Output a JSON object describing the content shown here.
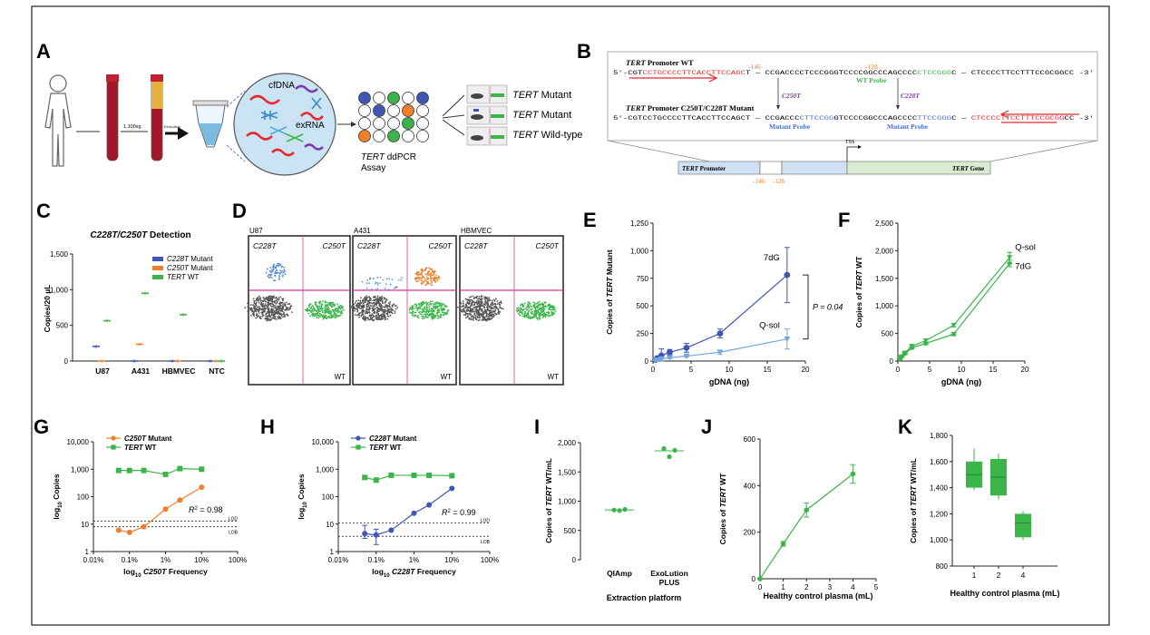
{
  "panels": {
    "A": {
      "letter": "A",
      "centrifuge": "1,100xg",
      "exolution": "ExoLution",
      "cfdna": "cfDNA",
      "exrna": "exRNA",
      "assay_name": "TERT",
      "assay_suffix": " ddPCR",
      "assay_line2": "Assay",
      "out_gene": "TERT",
      "out1": " Mutant",
      "out2": " Mutant",
      "out3": " Wild-type"
    },
    "B": {
      "letter": "B",
      "wt_title_gene": "TERT",
      "wt_title_rest": " Promoter WT",
      "wt_seq_prefix": "5'-CGT",
      "wt_seq_red": "CCTGCCCCTTCACCTTCCAGC",
      "wt_seq_mid": "T — CCGACCCCTCCCGGGTCCCCGGCCCAGCCCC",
      "wt_seq_probe": "CTCCGGG",
      "wt_seq_suffix": "C — CTCCCCTTCCTTTCCGCGGCC -3'",
      "pos146": "-146",
      "pos128": "-128",
      "wt_probe": "WT Probe",
      "c250": "C250T",
      "c228": "C228T",
      "mut_title_gene": "TERT",
      "mut_title_rest": " Promoter C250T/C228T Mutant",
      "mut_seq_prefix": "5'-CGTCCTGCCCCTTCACCTTCCAGCT — CCGACCC",
      "mut_seq_p1": "CTTCCGG",
      "mut_seq_mid": "GTCCCCGGCCCAGCCCC",
      "mut_seq_p2": "TTCCGGG",
      "mut_seq_c": "C — ",
      "mut_seq_red": "CTCCCCTTCCTTTCCGCGG",
      "mut_seq_suffix": "CC -3'",
      "mut_probe1": "Mutant Probe",
      "mut_probe2": "Mutant Probe",
      "tss": "TSS",
      "promoter_gene": "TERT",
      "promoter_rest": " Promoter",
      "gene_gene": "TERT",
      "gene_rest": " Gene",
      "bar146": "-146",
      "bar128": "-128"
    },
    "C": {
      "letter": "C"
    },
    "D": {
      "letter": "D",
      "plots": [
        {
          "name": "U87",
          "q1": "C228T",
          "q2": "C250T",
          "wt": "WT"
        },
        {
          "name": "A431",
          "q1": "C228T",
          "q2": "C250T",
          "wt": "WT"
        },
        {
          "name": "HBMVEC",
          "q1": "C228T",
          "q2": "C250T",
          "wt": "WT"
        }
      ]
    },
    "E": {
      "letter": "E"
    },
    "F": {
      "letter": "F"
    },
    "G": {
      "letter": "G"
    },
    "H": {
      "letter": "H"
    },
    "I": {
      "letter": "I"
    },
    "J": {
      "letter": "J"
    },
    "K": {
      "letter": "K"
    }
  },
  "colors": {
    "blue": "#3f56b5",
    "orange": "#f07f2a",
    "green": "#3bb54a",
    "lightblue": "#74a7dc",
    "magenta": "#d8389a",
    "red": "#e8282a",
    "purple": "#7a3db0",
    "probe_blue": "#4b6fd6"
  },
  "chart_data": [
    {
      "id": "C",
      "type": "scatter",
      "title": "C228T/C250T Detection",
      "xlabel": "",
      "ylabel": "Copies/20 µL",
      "categories": [
        "U87",
        "A431",
        "HBMVEC",
        "NTC"
      ],
      "ylim": [
        0,
        1500
      ],
      "yticks": [
        0,
        500,
        1000,
        1500
      ],
      "ytick_labels": [
        "0",
        "500",
        "1,000",
        "1,500"
      ],
      "legend": "top-right",
      "series": [
        {
          "name": "C228T Mutant",
          "values": [
            205,
            0,
            0,
            0
          ]
        },
        {
          "name": "C250T Mutant",
          "values": [
            0,
            235,
            0,
            0
          ]
        },
        {
          "name": "TERT WT",
          "values": [
            565,
            950,
            650,
            0
          ]
        }
      ]
    },
    {
      "id": "E",
      "type": "line",
      "xlabel": "gDNA (ng)",
      "ylabel": "Copies of TERT Mutant",
      "xlim": [
        0,
        20
      ],
      "ylim": [
        0,
        1250
      ],
      "xticks": [
        0,
        5,
        10,
        15,
        20
      ],
      "yticks": [
        0,
        250,
        500,
        750,
        1000,
        1250
      ],
      "ytick_labels": [
        "0",
        "250",
        "500",
        "750",
        "1,000",
        "1,250"
      ],
      "annotation": "P = 0.04",
      "series": [
        {
          "name": "7dG",
          "x": [
            0.28,
            0.55,
            1.1,
            2.2,
            4.4,
            8.8,
            17.6
          ],
          "values": [
            10,
            25,
            50,
            80,
            120,
            250,
            780
          ],
          "err": [
            5,
            8,
            60,
            25,
            40,
            40,
            250
          ]
        },
        {
          "name": "Q-sol",
          "x": [
            0.28,
            0.55,
            1.1,
            2.2,
            4.4,
            8.8,
            17.6
          ],
          "values": [
            5,
            10,
            20,
            30,
            45,
            80,
            200
          ],
          "err": [
            3,
            4,
            5,
            6,
            10,
            20,
            90
          ]
        }
      ]
    },
    {
      "id": "F",
      "type": "line",
      "xlabel": "gDNA (ng)",
      "ylabel": "Copies of TERT WT",
      "xlim": [
        0,
        20
      ],
      "ylim": [
        0,
        2500
      ],
      "xticks": [
        0,
        5,
        10,
        15,
        20
      ],
      "yticks": [
        0,
        500,
        1000,
        1500,
        2000,
        2500
      ],
      "ytick_labels": [
        "0",
        "500",
        "1,000",
        "1,500",
        "2,000",
        "2,500"
      ],
      "series": [
        {
          "name": "Q-sol",
          "x": [
            0.28,
            0.55,
            1.1,
            2.2,
            4.4,
            8.8,
            17.6
          ],
          "values": [
            40,
            80,
            150,
            270,
            370,
            650,
            1880
          ],
          "err": [
            10,
            10,
            15,
            20,
            25,
            30,
            90
          ]
        },
        {
          "name": "7dG",
          "x": [
            0.28,
            0.55,
            1.1,
            2.2,
            4.4,
            8.8,
            17.6
          ],
          "values": [
            30,
            70,
            130,
            240,
            320,
            490,
            1770
          ],
          "err": [
            10,
            10,
            15,
            20,
            25,
            30,
            60
          ]
        }
      ]
    },
    {
      "id": "G",
      "type": "line",
      "xlabel": "log10 C250T Frequency",
      "ylabel": "log10 Copies",
      "xscale": "log",
      "yscale": "log",
      "xlim": [
        0.01,
        100
      ],
      "ylim": [
        1,
        10000
      ],
      "xtick_labels": [
        "0.01%",
        "0.1%",
        "1%",
        "10%",
        "100%"
      ],
      "ytick_labels": [
        "1",
        "10",
        "100",
        "1,000",
        "10,000"
      ],
      "annotation": "R² = 0.98",
      "lines": [
        {
          "name": "LOD",
          "y": 13
        },
        {
          "name": "LOB",
          "y": 8
        }
      ],
      "series": [
        {
          "name": "C250T Mutant",
          "x": [
            0.05,
            0.1,
            0.25,
            1,
            2.5,
            10
          ],
          "values": [
            6,
            5,
            8,
            35,
            75,
            220
          ]
        },
        {
          "name": "TERT WT",
          "x": [
            0.05,
            0.1,
            0.25,
            1,
            2.5,
            10
          ],
          "values": [
            900,
            900,
            900,
            650,
            1050,
            1000
          ]
        }
      ]
    },
    {
      "id": "H",
      "type": "line",
      "xlabel": "log10 C228T Frequency",
      "ylabel": "log10 Copies",
      "xscale": "log",
      "yscale": "log",
      "xlim": [
        0.01,
        100
      ],
      "ylim": [
        1,
        10000
      ],
      "xtick_labels": [
        "0.01%",
        "0.1%",
        "1%",
        "10%",
        "100%"
      ],
      "ytick_labels": [
        "1",
        "10",
        "100",
        "1,000",
        "10,000"
      ],
      "annotation": "R² = 0.99",
      "lines": [
        {
          "name": "LOD",
          "y": 11
        },
        {
          "name": "LOB",
          "y": 3.6
        }
      ],
      "series": [
        {
          "name": "C228T Mutant",
          "x": [
            0.05,
            0.1,
            0.25,
            1,
            2.5,
            10
          ],
          "values": [
            4.5,
            4,
            6,
            25,
            50,
            200
          ]
        },
        {
          "name": "TERT WT",
          "x": [
            0.05,
            0.1,
            0.25,
            1,
            2.5,
            10
          ],
          "values": [
            500,
            400,
            600,
            600,
            600,
            580
          ]
        }
      ]
    },
    {
      "id": "I",
      "type": "scatter",
      "xlabel": "Extraction platform",
      "ylabel": "Copies of TERT WT/mL",
      "categories": [
        "QIAmp",
        "ExoLution PLUS"
      ],
      "ylim": [
        0,
        2000
      ],
      "yticks": [
        0,
        500,
        1000,
        1500,
        2000
      ],
      "ytick_labels": [
        "0",
        "500",
        "1,000",
        "1,500",
        "2,000"
      ],
      "series": [
        {
          "name": "",
          "points": [
            [
              850,
              840,
              860
            ],
            [
              1900,
              1760,
              1870
            ]
          ],
          "means": [
            850,
            1860
          ]
        }
      ]
    },
    {
      "id": "J",
      "type": "line",
      "xlabel": "Healthy control plasma (mL)",
      "ylabel": "Copies of TERT WT",
      "xlim": [
        0,
        5
      ],
      "ylim": [
        0,
        600
      ],
      "xticks": [
        0,
        1,
        2,
        3,
        4,
        5
      ],
      "yticks": [
        0,
        200,
        400,
        600
      ],
      "series": [
        {
          "name": "",
          "x": [
            0,
            1,
            2,
            4
          ],
          "values": [
            0,
            150,
            295,
            450
          ],
          "err": [
            0,
            10,
            30,
            40
          ]
        }
      ]
    },
    {
      "id": "K",
      "type": "bar",
      "xlabel": "Healthy control plasma (mL)",
      "ylabel": "Copies of TERT WT/mL",
      "categories": [
        "1",
        "2",
        "4"
      ],
      "ylim": [
        800,
        1800
      ],
      "yticks": [
        800,
        1000,
        1200,
        1400,
        1600,
        1800
      ],
      "ytick_labels": [
        "800",
        "1,000",
        "1,200",
        "1,400",
        "1,600",
        "1,800"
      ],
      "series": [
        {
          "name": "",
          "boxes": [
            {
              "min": 1380,
              "q1": 1400,
              "median": 1500,
              "q3": 1600,
              "max": 1700
            },
            {
              "min": 1310,
              "q1": 1340,
              "median": 1480,
              "q3": 1620,
              "max": 1660
            },
            {
              "min": 1000,
              "q1": 1020,
              "median": 1130,
              "q3": 1200,
              "max": 1220
            }
          ]
        }
      ]
    }
  ]
}
